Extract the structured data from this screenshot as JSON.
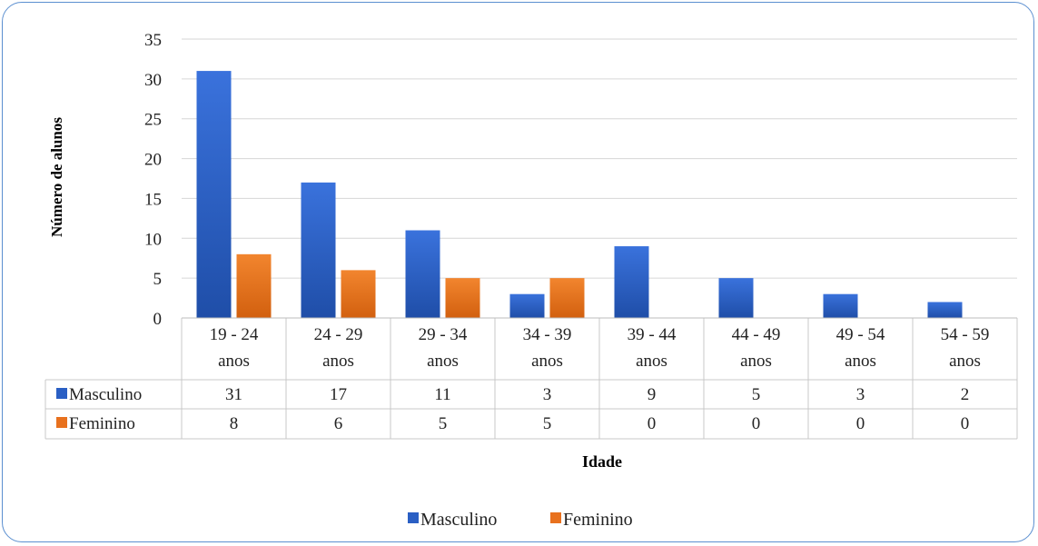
{
  "colors": {
    "masculino": "#2a5fc4",
    "feminino": "#e8711e",
    "grid": "#d6d6d6",
    "frame": "#5b8fd0"
  },
  "chart_data": {
    "type": "bar",
    "title": "",
    "xlabel": "Idade",
    "ylabel": "Número de alunos",
    "ylim": [
      0,
      35
    ],
    "yticks": [
      0,
      5,
      10,
      15,
      20,
      25,
      30,
      35
    ],
    "grid": true,
    "legend": "bottom-center",
    "categories": [
      [
        "19 - 24",
        "anos"
      ],
      [
        "24 - 29",
        "anos"
      ],
      [
        "29 - 34",
        "anos"
      ],
      [
        "34 - 39",
        "anos"
      ],
      [
        "39 - 44",
        "anos"
      ],
      [
        "44 - 49",
        "anos"
      ],
      [
        "49 - 54",
        "anos"
      ],
      [
        "54 - 59",
        "anos"
      ]
    ],
    "series": [
      {
        "name": "Masculino",
        "color": "#2a5fc4",
        "values": [
          31,
          17,
          11,
          3,
          9,
          5,
          3,
          2
        ]
      },
      {
        "name": "Feminino",
        "color": "#e8711e",
        "values": [
          8,
          6,
          5,
          5,
          0,
          0,
          0,
          0
        ]
      }
    ]
  }
}
